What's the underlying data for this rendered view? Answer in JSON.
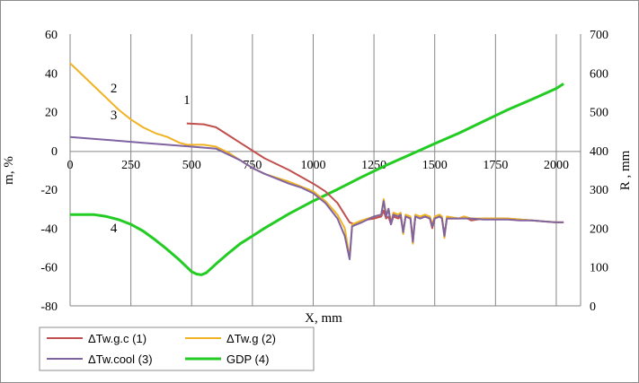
{
  "chart_data": {
    "type": "line",
    "x_label": "X, mm",
    "y_left_label": "m, %",
    "y_right_label": "R , mm",
    "x_ticks": [
      0,
      250,
      500,
      750,
      1000,
      1250,
      1500,
      1750,
      2000
    ],
    "y_left_ticks": [
      60,
      40,
      20,
      0,
      -20,
      -40,
      -60,
      -80
    ],
    "y_right_ticks": [
      700,
      600,
      500,
      400,
      300,
      200,
      100,
      0
    ],
    "x_range": [
      0,
      2100
    ],
    "y_left_range": [
      -80,
      60
    ],
    "y_right_range": [
      0,
      700
    ],
    "grid": "vertical",
    "legend_position": "bottom-left",
    "series": [
      {
        "name": "ΔTw.g.c (1)",
        "axis": "left",
        "color": "#c0504d",
        "curve_label": "1",
        "points": [
          [
            480,
            14
          ],
          [
            550,
            13.5
          ],
          [
            600,
            12
          ],
          [
            650,
            8
          ],
          [
            700,
            4
          ],
          [
            750,
            0
          ],
          [
            800,
            -4
          ],
          [
            850,
            -7
          ],
          [
            900,
            -10
          ],
          [
            950,
            -13.5
          ],
          [
            1000,
            -17
          ],
          [
            1050,
            -21
          ],
          [
            1100,
            -27
          ],
          [
            1130,
            -33
          ],
          [
            1150,
            -37
          ],
          [
            1170,
            -38
          ],
          [
            1200,
            -36
          ],
          [
            1250,
            -35
          ],
          [
            1280,
            -34
          ],
          [
            1290,
            -31
          ],
          [
            1300,
            -35
          ],
          [
            1310,
            -34
          ],
          [
            1320,
            -38
          ],
          [
            1330,
            -34
          ],
          [
            1350,
            -35
          ],
          [
            1360,
            -34
          ],
          [
            1370,
            -42
          ],
          [
            1380,
            -34
          ],
          [
            1400,
            -35
          ],
          [
            1410,
            -46
          ],
          [
            1420,
            -34
          ],
          [
            1440,
            -35
          ],
          [
            1460,
            -34
          ],
          [
            1480,
            -35
          ],
          [
            1490,
            -40
          ],
          [
            1500,
            -35
          ],
          [
            1520,
            -34
          ],
          [
            1530,
            -35
          ],
          [
            1540,
            -44
          ],
          [
            1550,
            -35
          ],
          [
            1600,
            -35
          ],
          [
            1620,
            -34
          ],
          [
            1650,
            -36
          ],
          [
            1700,
            -35
          ],
          [
            1750,
            -35
          ],
          [
            1800,
            -35
          ],
          [
            1850,
            -35.5
          ],
          [
            1900,
            -36
          ],
          [
            1950,
            -36.5
          ],
          [
            2000,
            -37
          ],
          [
            2030,
            -37
          ]
        ]
      },
      {
        "name": "ΔTw.g (2)",
        "axis": "left",
        "color": "#f0b323",
        "curve_label": "2",
        "points": [
          [
            0,
            45
          ],
          [
            50,
            39
          ],
          [
            100,
            33
          ],
          [
            150,
            27
          ],
          [
            200,
            21
          ],
          [
            250,
            16
          ],
          [
            300,
            12
          ],
          [
            350,
            9
          ],
          [
            400,
            7
          ],
          [
            450,
            4
          ],
          [
            480,
            3
          ],
          [
            550,
            3
          ],
          [
            600,
            2
          ],
          [
            650,
            -1
          ],
          [
            700,
            -5
          ],
          [
            750,
            -9
          ],
          [
            800,
            -12
          ],
          [
            850,
            -14
          ],
          [
            900,
            -16
          ],
          [
            950,
            -18.5
          ],
          [
            1000,
            -21
          ],
          [
            1050,
            -26
          ],
          [
            1100,
            -33
          ],
          [
            1130,
            -40
          ],
          [
            1150,
            -55
          ],
          [
            1160,
            -38
          ],
          [
            1200,
            -36
          ],
          [
            1250,
            -34
          ],
          [
            1280,
            -33
          ],
          [
            1290,
            -25
          ],
          [
            1300,
            -33
          ],
          [
            1310,
            -30
          ],
          [
            1320,
            -37
          ],
          [
            1330,
            -32
          ],
          [
            1350,
            -33
          ],
          [
            1360,
            -32
          ],
          [
            1370,
            -43
          ],
          [
            1380,
            -33
          ],
          [
            1400,
            -34
          ],
          [
            1410,
            -48
          ],
          [
            1420,
            -33
          ],
          [
            1440,
            -34
          ],
          [
            1460,
            -33
          ],
          [
            1480,
            -34
          ],
          [
            1490,
            -38
          ],
          [
            1500,
            -34
          ],
          [
            1520,
            -33
          ],
          [
            1530,
            -34
          ],
          [
            1540,
            -45
          ],
          [
            1550,
            -34
          ],
          [
            1600,
            -35
          ],
          [
            1620,
            -34
          ],
          [
            1650,
            -35
          ],
          [
            1700,
            -35
          ],
          [
            1750,
            -35
          ],
          [
            1800,
            -35
          ],
          [
            1850,
            -35.5
          ],
          [
            1900,
            -36
          ],
          [
            1950,
            -36.5
          ],
          [
            2000,
            -37
          ],
          [
            2030,
            -37
          ]
        ]
      },
      {
        "name": "ΔTw.cool (3)",
        "axis": "left",
        "color": "#8064a2",
        "curve_label": "3",
        "points": [
          [
            0,
            7
          ],
          [
            100,
            6
          ],
          [
            200,
            5
          ],
          [
            300,
            4
          ],
          [
            400,
            3
          ],
          [
            500,
            2
          ],
          [
            550,
            1.5
          ],
          [
            600,
            1
          ],
          [
            650,
            -2
          ],
          [
            700,
            -5
          ],
          [
            750,
            -9
          ],
          [
            800,
            -12
          ],
          [
            850,
            -14.5
          ],
          [
            900,
            -17
          ],
          [
            950,
            -19
          ],
          [
            1000,
            -22
          ],
          [
            1050,
            -27
          ],
          [
            1100,
            -35
          ],
          [
            1130,
            -44
          ],
          [
            1150,
            -56
          ],
          [
            1160,
            -39
          ],
          [
            1200,
            -37
          ],
          [
            1250,
            -34
          ],
          [
            1280,
            -33
          ],
          [
            1290,
            -26
          ],
          [
            1300,
            -34
          ],
          [
            1310,
            -30
          ],
          [
            1320,
            -38
          ],
          [
            1330,
            -33
          ],
          [
            1350,
            -34
          ],
          [
            1360,
            -33
          ],
          [
            1370,
            -42
          ],
          [
            1380,
            -34
          ],
          [
            1400,
            -35
          ],
          [
            1410,
            -47
          ],
          [
            1420,
            -34
          ],
          [
            1440,
            -35
          ],
          [
            1460,
            -34
          ],
          [
            1480,
            -35
          ],
          [
            1490,
            -39
          ],
          [
            1500,
            -35
          ],
          [
            1520,
            -34
          ],
          [
            1530,
            -35
          ],
          [
            1540,
            -44
          ],
          [
            1550,
            -35
          ],
          [
            1600,
            -35
          ],
          [
            1650,
            -35
          ],
          [
            1700,
            -35.5
          ],
          [
            1750,
            -35.5
          ],
          [
            1800,
            -35.5
          ],
          [
            1850,
            -36
          ],
          [
            1900,
            -36
          ],
          [
            1950,
            -36.5
          ],
          [
            2000,
            -37
          ],
          [
            2030,
            -37
          ]
        ]
      },
      {
        "name": "GDP (4)",
        "axis": "right",
        "color": "#22cc22",
        "curve_label": "4",
        "points": [
          [
            0,
            235
          ],
          [
            50,
            235
          ],
          [
            100,
            235
          ],
          [
            150,
            230
          ],
          [
            200,
            222
          ],
          [
            250,
            210
          ],
          [
            300,
            193
          ],
          [
            350,
            170
          ],
          [
            400,
            145
          ],
          [
            450,
            118
          ],
          [
            480,
            100
          ],
          [
            500,
            88
          ],
          [
            520,
            82
          ],
          [
            540,
            80
          ],
          [
            560,
            85
          ],
          [
            600,
            108
          ],
          [
            650,
            135
          ],
          [
            700,
            160
          ],
          [
            750,
            180
          ],
          [
            800,
            200
          ],
          [
            900,
            237
          ],
          [
            1000,
            270
          ],
          [
            1100,
            300
          ],
          [
            1200,
            332
          ],
          [
            1300,
            362
          ],
          [
            1400,
            390
          ],
          [
            1500,
            418
          ],
          [
            1600,
            445
          ],
          [
            1700,
            475
          ],
          [
            1800,
            505
          ],
          [
            1900,
            532
          ],
          [
            2000,
            560
          ],
          [
            2030,
            572
          ]
        ]
      }
    ]
  }
}
